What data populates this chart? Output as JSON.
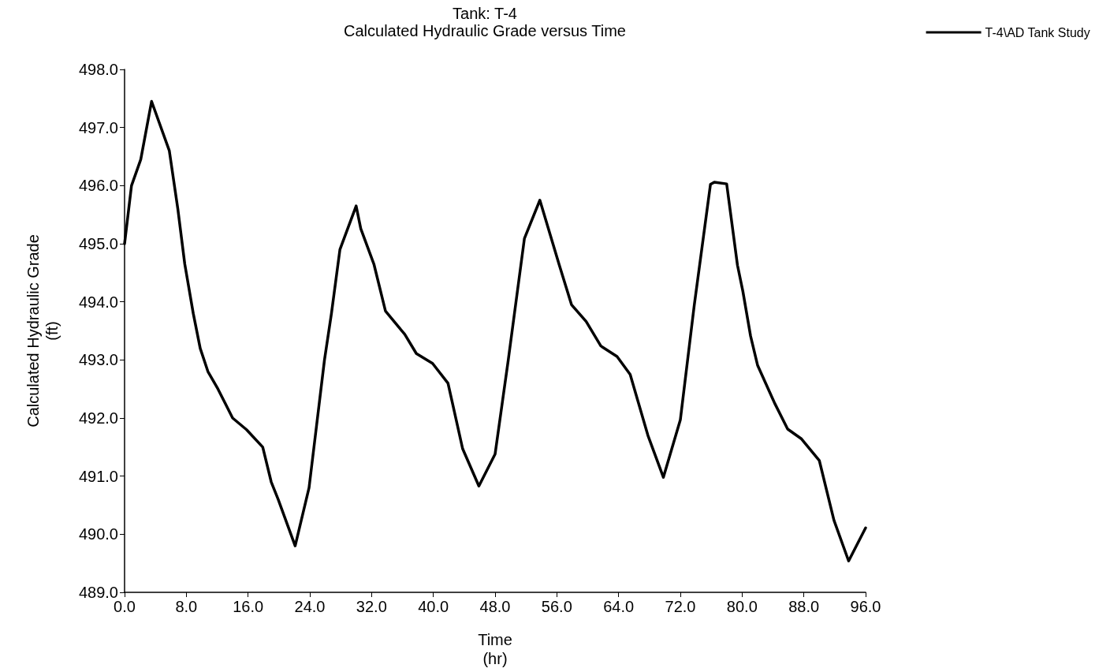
{
  "chart_data": {
    "type": "line",
    "title": "Tank: T-4",
    "subtitle": "Calculated Hydraulic Grade versus Time",
    "xlabel": "Time\n(hr)",
    "ylabel": "Calculated Hydraulic Grade\n(ft)",
    "x": [
      0,
      0.9,
      2.1,
      3.5,
      5.8,
      6.9,
      7.8,
      8.9,
      9.8,
      10.8,
      12.1,
      14,
      15.8,
      17.9,
      19,
      19.9,
      22.1,
      23.9,
      24.9,
      25.9,
      26.8,
      27.9,
      30,
      30.6,
      32.3,
      33.8,
      36.3,
      37.8,
      39.9,
      41.9,
      43.8,
      45.9,
      48,
      49.7,
      51.8,
      53.8,
      56.3,
      57.9,
      59.8,
      61.7,
      63.8,
      65.5,
      67.8,
      69.8,
      72,
      73.8,
      75.9,
      76.4,
      78,
      79.4,
      80.1,
      81.1,
      82,
      84.2,
      85.9,
      87.7,
      90,
      91.9,
      93.8,
      96
    ],
    "series": [
      {
        "name": "T-4\\AD Tank Study",
        "color": "#000000",
        "values": [
          495.0,
          496.0,
          496.45,
          497.45,
          496.6,
          495.6,
          494.65,
          493.8,
          493.2,
          492.8,
          492.5,
          492.0,
          491.8,
          491.5,
          490.9,
          490.6,
          489.8,
          490.8,
          491.9,
          493.0,
          493.8,
          494.9,
          495.65,
          495.26,
          494.65,
          493.84,
          493.44,
          493.11,
          492.94,
          492.6,
          491.47,
          490.83,
          491.38,
          492.99,
          495.09,
          495.75,
          494.64,
          493.95,
          493.66,
          493.24,
          493.06,
          492.75,
          491.7,
          490.98,
          491.97,
          493.94,
          496.02,
          496.06,
          496.03,
          494.63,
          494.18,
          493.41,
          492.91,
          492.26,
          491.81,
          491.64,
          491.27,
          490.24,
          489.54,
          490.11
        ]
      }
    ],
    "xlim": [
      0,
      96
    ],
    "xticks": [
      {
        "value": 0,
        "label": "0.0"
      },
      {
        "value": 8,
        "label": "8.0"
      },
      {
        "value": 16,
        "label": "16.0"
      },
      {
        "value": 24,
        "label": "24.0"
      },
      {
        "value": 32,
        "label": "32.0"
      },
      {
        "value": 40,
        "label": "40.0"
      },
      {
        "value": 48,
        "label": "48.0"
      },
      {
        "value": 56,
        "label": "56.0"
      },
      {
        "value": 64,
        "label": "64.0"
      },
      {
        "value": 72,
        "label": "72.0"
      },
      {
        "value": 80,
        "label": "80.0"
      },
      {
        "value": 88,
        "label": "88.0"
      },
      {
        "value": 96,
        "label": "96.0"
      }
    ],
    "ylim": [
      489,
      498
    ],
    "yticks": [
      {
        "value": 489,
        "label": "489.0"
      },
      {
        "value": 490,
        "label": "490.0"
      },
      {
        "value": 491,
        "label": "491.0"
      },
      {
        "value": 492,
        "label": "492.0"
      },
      {
        "value": 493,
        "label": "493.0"
      },
      {
        "value": 494,
        "label": "494.0"
      },
      {
        "value": 495,
        "label": "495.0"
      },
      {
        "value": 496,
        "label": "496.0"
      },
      {
        "value": 497,
        "label": "497.0"
      },
      {
        "value": 498,
        "label": "498.0"
      }
    ],
    "grid": false,
    "legend": "top right",
    "marker": "none",
    "line_style": "solid"
  }
}
